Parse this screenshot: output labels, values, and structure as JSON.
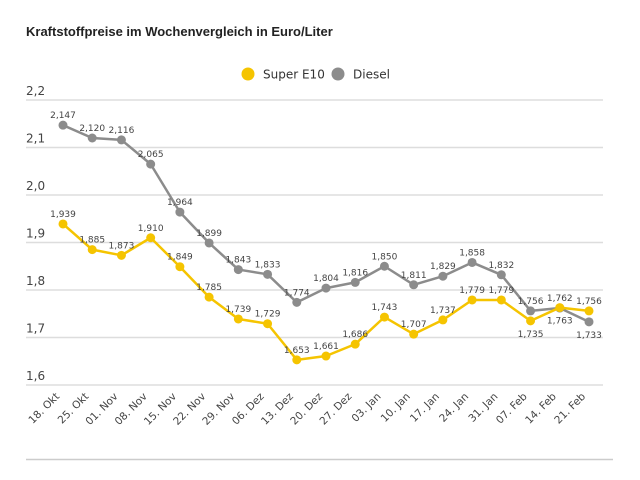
{
  "chart_data": {
    "type": "line",
    "title": "Kraftstoffpreise im Wochenvergleich in Euro/Liter",
    "categories": [
      "18. Okt",
      "25. Okt",
      "01. Nov",
      "08. Nov",
      "15. Nov",
      "22. Nov",
      "29. Nov",
      "06. Dez",
      "13. Dez",
      "20. Dez",
      "27. Dez",
      "03. Jan",
      "10. Jan",
      "17. Jan",
      "24. Jan",
      "31. Jan",
      "07. Feb",
      "14. Feb",
      "21. Feb"
    ],
    "series": [
      {
        "name": "Super E10",
        "color": "#f5c400",
        "values": [
          1.939,
          1.885,
          1.873,
          1.91,
          1.849,
          1.785,
          1.739,
          1.729,
          1.653,
          1.661,
          1.686,
          1.743,
          1.707,
          1.737,
          1.779,
          1.779,
          1.735,
          1.763,
          1.756
        ],
        "labels": [
          "1,939",
          "1,885",
          "1,873",
          "1,910",
          "1,849",
          "1,785",
          "1,739",
          "1,729",
          "1,653",
          "1,661",
          "1,686",
          "1,743",
          "1,707",
          "1,737",
          "1,779",
          "1,779",
          "1,735",
          "1,763",
          "1,756"
        ]
      },
      {
        "name": "Diesel",
        "color": "#8c8c8c",
        "values": [
          2.147,
          2.12,
          2.116,
          2.065,
          1.964,
          1.899,
          1.843,
          1.833,
          1.774,
          1.804,
          1.816,
          1.85,
          1.811,
          1.829,
          1.858,
          1.832,
          1.756,
          1.762,
          1.733
        ],
        "labels": [
          "2,147",
          "2,120",
          "2,116",
          "2,065",
          "1,964",
          "1,899",
          "1,843",
          "1,833",
          "1,774",
          "1,804",
          "1,816",
          "1,850",
          "1,811",
          "1,829",
          "1,858",
          "1,832",
          "1,756",
          "1,762",
          "1,733"
        ]
      }
    ],
    "ylim": [
      1.6,
      2.2
    ],
    "yticks": [
      2.2,
      2.1,
      2.0,
      1.9,
      1.8,
      1.7,
      1.6
    ],
    "ytick_labels": [
      "2,2",
      "2,1",
      "2,0",
      "1,9",
      "1,8",
      "1,7",
      "1,6"
    ],
    "grid": true,
    "legend_placement": "top-center",
    "xlabel": "",
    "ylabel": ""
  }
}
